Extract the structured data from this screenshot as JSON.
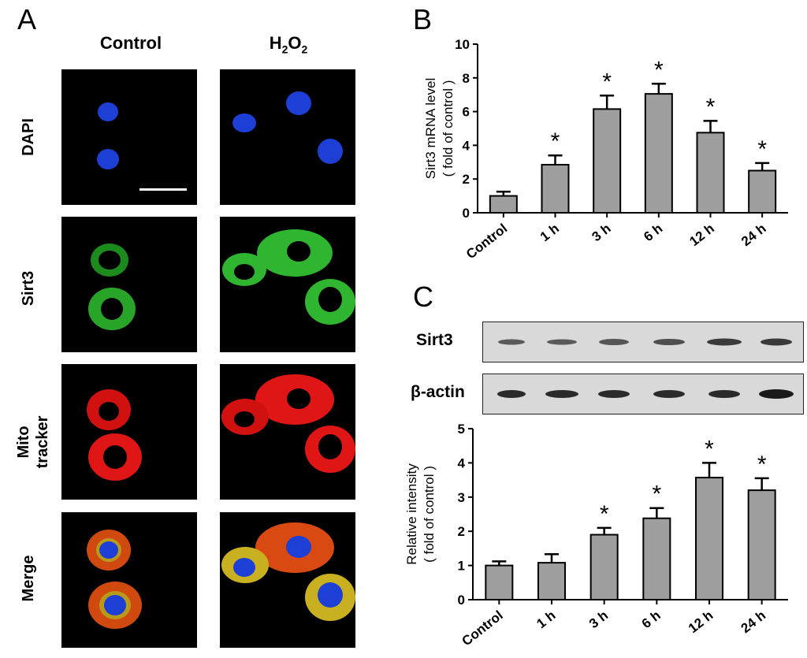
{
  "panel_a": {
    "letter": "A",
    "columns": [
      "Control",
      "H2O2"
    ],
    "rows": [
      "DAPI",
      "Sirt3",
      "Mito\ntracker",
      "Merge"
    ]
  },
  "panel_b": {
    "letter": "B"
  },
  "panel_c": {
    "letter": "C",
    "blot_labels": [
      "Sirt3",
      "β-actin"
    ]
  },
  "chart_data": [
    {
      "type": "bar",
      "panel": "B",
      "categories": [
        "Control",
        "1 h",
        "3 h",
        "6 h",
        "12 h",
        "24 h"
      ],
      "values": [
        1.0,
        2.85,
        6.15,
        7.05,
        4.75,
        2.5
      ],
      "errors": [
        0.25,
        0.55,
        0.8,
        0.6,
        0.7,
        0.45
      ],
      "significant": [
        false,
        true,
        true,
        true,
        true,
        true
      ],
      "significance_mark": "*",
      "ylabel": [
        "Sirt3 mRNA level",
        "( fold of control )"
      ],
      "ylim": [
        0,
        10
      ],
      "yticks": [
        0,
        2,
        4,
        6,
        8,
        10
      ],
      "bar_color": "#9e9e9e"
    },
    {
      "type": "bar",
      "panel": "C",
      "categories": [
        "Control",
        "1 h",
        "3 h",
        "6 h",
        "12 h",
        "24 h"
      ],
      "values": [
        1.0,
        1.08,
        1.9,
        2.38,
        3.57,
        3.2
      ],
      "errors": [
        0.12,
        0.25,
        0.2,
        0.3,
        0.43,
        0.35
      ],
      "significant": [
        false,
        false,
        true,
        true,
        true,
        true
      ],
      "significance_mark": "*",
      "ylabel": [
        "Relative intensity",
        "( fold of control )"
      ],
      "ylim": [
        0,
        5
      ],
      "yticks": [
        0,
        1,
        2,
        3,
        4,
        5
      ],
      "bar_color": "#9e9e9e"
    }
  ]
}
